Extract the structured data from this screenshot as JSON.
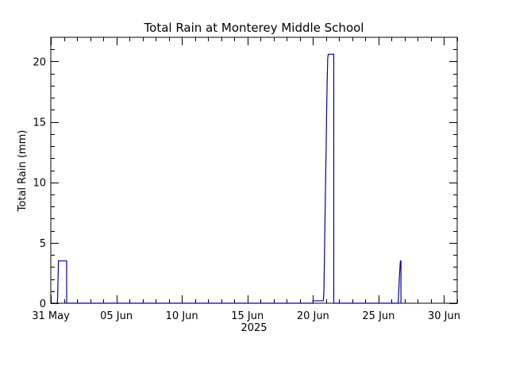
{
  "chart_data": {
    "type": "line",
    "title": "Total Rain at Monterey Middle School",
    "xlabel": "2025",
    "ylabel": "Total Rain (mm)",
    "x_ticks": [
      "31 May",
      "05 Jun",
      "10 Jun",
      "15 Jun",
      "20 Jun",
      "25 Jun",
      "30 Jun"
    ],
    "xlim": [
      "2025-05-31",
      "2025-07-01"
    ],
    "y_ticks": [
      "0",
      "5",
      "10",
      "15",
      "20"
    ],
    "ylim": [
      0,
      22
    ],
    "line_color": "#0000aa",
    "series": [
      {
        "points": [
          [
            "2025-05-31T12:00",
            0
          ],
          [
            "2025-05-31T12:30",
            0.5
          ],
          [
            "2025-05-31T13:00",
            1.5
          ],
          [
            "2025-05-31T13:30",
            2.5
          ],
          [
            "2025-05-31T14:00",
            3.5
          ],
          [
            "2025-06-01T05:00",
            3.5
          ],
          [
            "2025-06-01T05:00",
            0
          ],
          [
            "2025-06-20T00:00",
            0
          ],
          [
            "2025-06-20T00:00",
            0.2
          ],
          [
            "2025-06-20T19:00",
            0.2
          ],
          [
            "2025-06-20T20:00",
            1
          ],
          [
            "2025-06-20T21:00",
            3.8
          ],
          [
            "2025-06-20T22:00",
            7
          ],
          [
            "2025-06-20T23:00",
            10
          ],
          [
            "2025-06-21T00:00",
            12.5
          ],
          [
            "2025-06-21T01:00",
            16
          ],
          [
            "2025-06-21T02:00",
            18.5
          ],
          [
            "2025-06-21T03:00",
            20.3
          ],
          [
            "2025-06-21T04:00",
            20.6
          ],
          [
            "2025-06-21T14:00",
            20.6
          ],
          [
            "2025-06-21T14:00",
            0
          ],
          [
            "2025-06-26T12:00",
            0
          ],
          [
            "2025-06-26T13:00",
            1
          ],
          [
            "2025-06-26T14:00",
            2
          ],
          [
            "2025-06-26T15:00",
            2.8
          ],
          [
            "2025-06-26T16:00",
            3.5
          ],
          [
            "2025-06-26T17:00",
            3.5
          ],
          [
            "2025-06-26T17:00",
            0
          ]
        ]
      }
    ]
  }
}
